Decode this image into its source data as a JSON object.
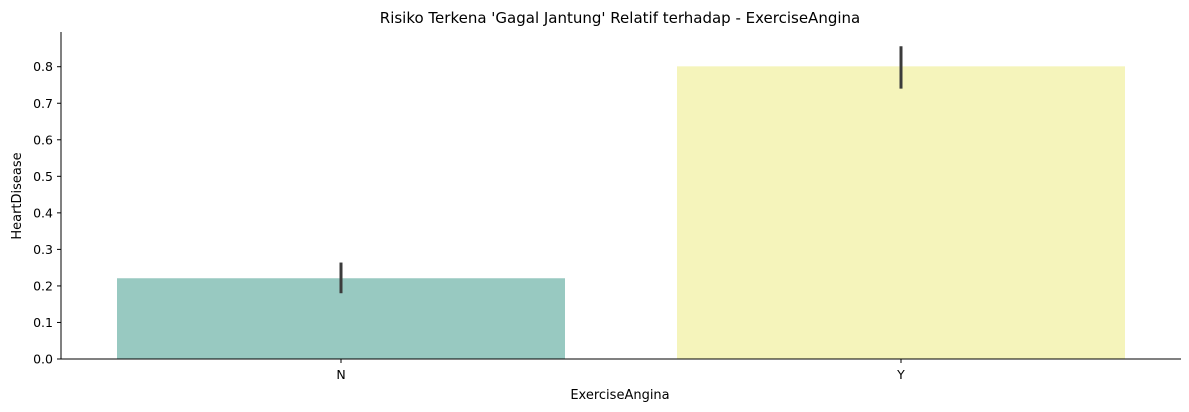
{
  "chart_data": {
    "type": "bar",
    "title": "Risiko Terkena 'Gagal Jantung' Relatif terhadap - ExerciseAngina",
    "xlabel": "ExerciseAngina",
    "ylabel": "HeartDisease",
    "categories": [
      "N",
      "Y"
    ],
    "values": [
      0.221,
      0.801
    ],
    "error_bars": [
      {
        "low": 0.18,
        "high": 0.264
      },
      {
        "low": 0.74,
        "high": 0.856
      }
    ],
    "colors": [
      "#98c9c1",
      "#f5f4bb"
    ],
    "errorbar_color": "#3b3b3b",
    "ylim": [
      0,
      0.895
    ],
    "yticks": [
      "0.0",
      "0.1",
      "0.2",
      "0.3",
      "0.4",
      "0.5",
      "0.6",
      "0.7",
      "0.8"
    ],
    "grid": false,
    "spines": [
      "left",
      "bottom"
    ]
  }
}
